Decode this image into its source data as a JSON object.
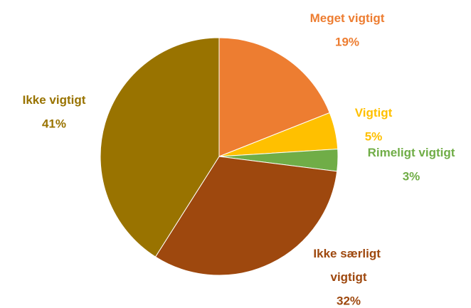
{
  "chart_data": {
    "type": "pie",
    "categories": [
      "Meget vigtigt",
      "Vigtigt",
      "Rimeligt vigtigt",
      "Ikke særligt vigtigt",
      "Ikke vigtigt"
    ],
    "values": [
      19,
      5,
      3,
      32,
      41
    ],
    "value_labels": [
      "19%",
      "5%",
      "3%",
      "32%",
      "41%"
    ],
    "colors": [
      "#ED7D31",
      "#FFC000",
      "#70AD47",
      "#9E480E",
      "#997300"
    ]
  }
}
